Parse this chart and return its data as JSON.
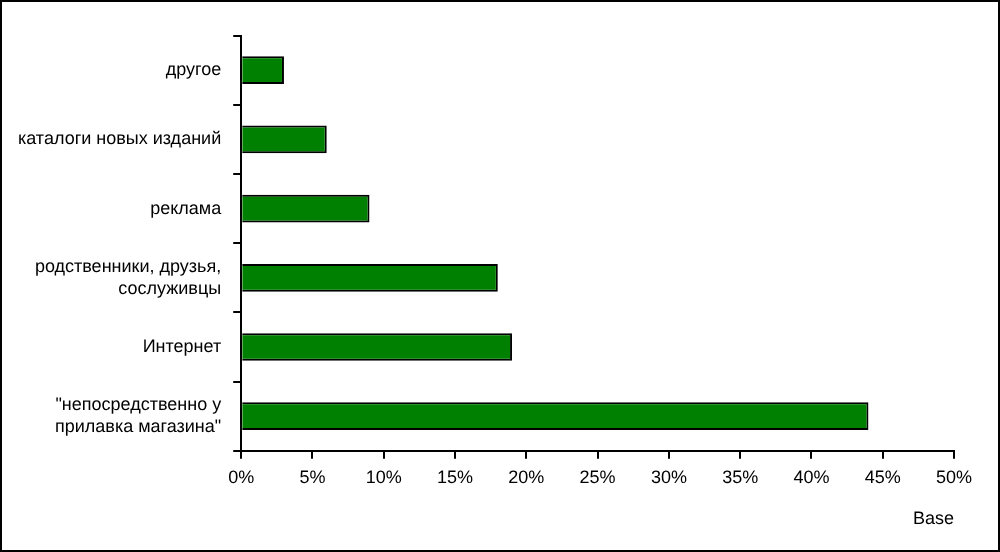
{
  "chart_data": {
    "type": "bar",
    "orientation": "horizontal",
    "xlabel": "Base",
    "categories": [
      "другое",
      "каталоги новых изданий",
      "реклама",
      "родственники, друзья, сослуживцы",
      "Интернет",
      "\"непосредственно у прилавка магазина\""
    ],
    "values": [
      3,
      6,
      9,
      18,
      19,
      44
    ],
    "color": "#008000",
    "xlim": [
      0,
      50
    ],
    "xticks": [
      {
        "value": 0,
        "label": "0%"
      },
      {
        "value": 5,
        "label": "5%"
      },
      {
        "value": 10,
        "label": "10%"
      },
      {
        "value": 15,
        "label": "15%"
      },
      {
        "value": 20,
        "label": "20%"
      },
      {
        "value": 25,
        "label": "25%"
      },
      {
        "value": 30,
        "label": "30%"
      },
      {
        "value": 35,
        "label": "35%"
      },
      {
        "value": 40,
        "label": "40%"
      },
      {
        "value": 45,
        "label": "45%"
      },
      {
        "value": 50,
        "label": "50%"
      }
    ],
    "grid": false,
    "legend": false
  }
}
